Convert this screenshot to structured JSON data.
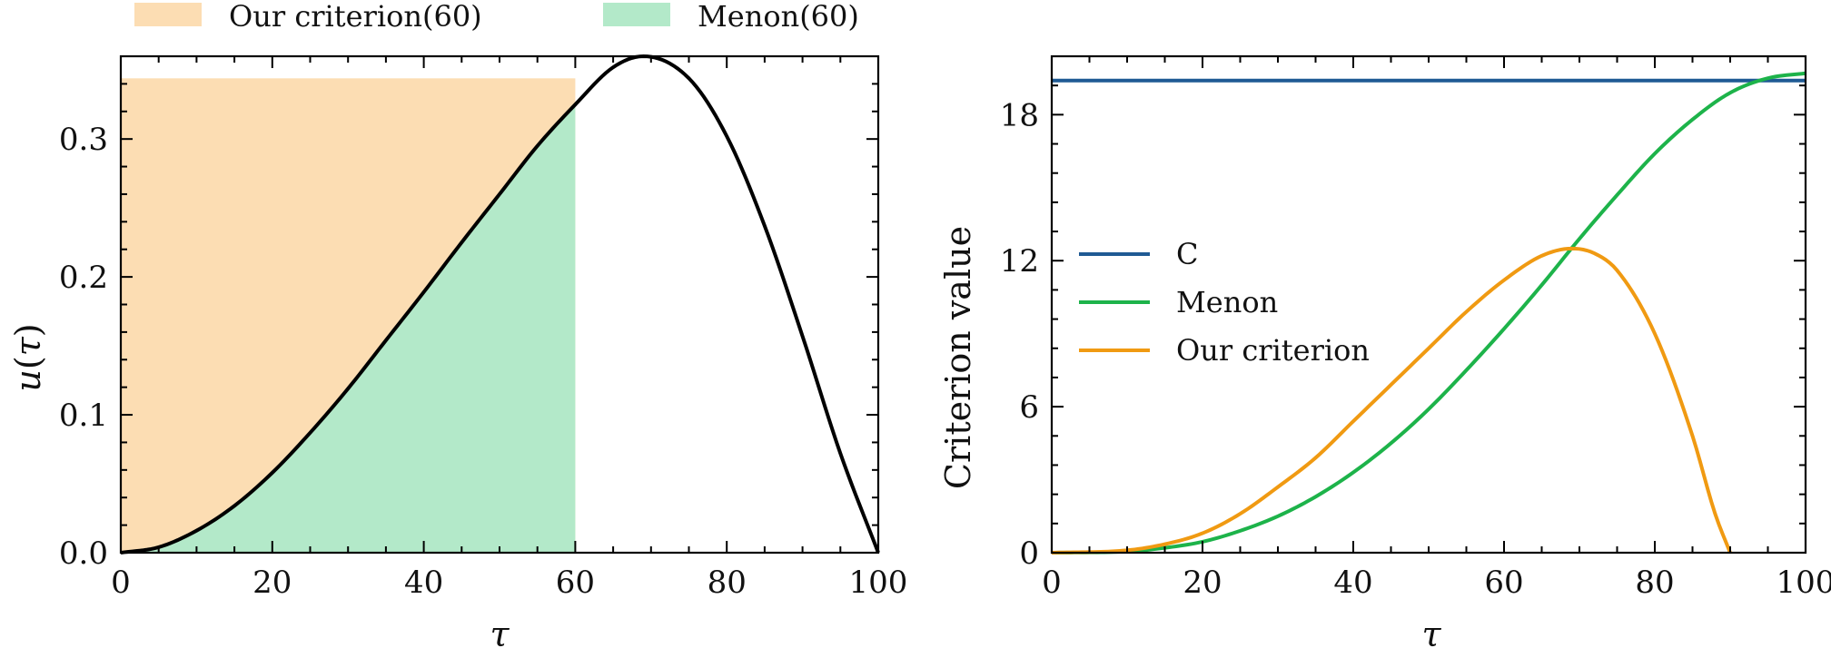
{
  "chart_data": [
    {
      "type": "area",
      "xlabel": "τ",
      "ylabel": "u(τ)",
      "xlim": [
        0,
        100
      ],
      "ylim": [
        0,
        0.36
      ],
      "xticks": [
        0,
        20,
        40,
        60,
        80,
        100
      ],
      "yticks": [
        0.0,
        0.1,
        0.2,
        0.3
      ],
      "xtick_labels": [
        "0",
        "20",
        "40",
        "60",
        "80",
        "100"
      ],
      "ytick_labels": [
        "0.0",
        "0.1",
        "0.2",
        "0.3"
      ],
      "legend": {
        "placement": "top, outside",
        "entries": [
          "Our criterion(60)",
          "Menon(60)"
        ]
      },
      "curve": {
        "x": [
          0,
          5,
          10,
          15,
          20,
          25,
          30,
          35,
          40,
          45,
          50,
          55,
          60,
          65,
          69,
          75,
          80,
          85,
          90,
          95,
          100
        ],
        "y": [
          0.0,
          0.004,
          0.016,
          0.034,
          0.058,
          0.087,
          0.119,
          0.154,
          0.189,
          0.225,
          0.26,
          0.295,
          0.325,
          0.352,
          0.36,
          0.344,
          0.302,
          0.237,
          0.157,
          0.072,
          0.0
        ]
      },
      "filled_regions": [
        {
          "name": "Our criterion(60)",
          "type": "rectangle",
          "x_range": [
            0,
            60
          ],
          "y_value": 0.344,
          "color": "#fcddb3"
        },
        {
          "name": "Menon(60)",
          "type": "under-curve",
          "x_range": [
            0,
            60
          ],
          "color": "#b3e9c9"
        }
      ],
      "curve_color": "#000000"
    },
    {
      "type": "line",
      "xlabel": "τ",
      "ylabel": "Criterion value",
      "xlim": [
        0,
        100
      ],
      "ylim": [
        0,
        20.4
      ],
      "xticks": [
        0,
        20,
        40,
        60,
        80,
        100
      ],
      "yticks": [
        0,
        6,
        12,
        18
      ],
      "xtick_labels": [
        "0",
        "20",
        "40",
        "60",
        "80",
        "100"
      ],
      "ytick_labels": [
        "0",
        "6",
        "12",
        "18"
      ],
      "legend": {
        "placement": "center-left"
      },
      "series": [
        {
          "name": "C",
          "color": "#1f5a94",
          "x": [
            0,
            100
          ],
          "values": [
            19.4,
            19.4
          ]
        },
        {
          "name": "Menon",
          "color": "#1db34a",
          "x": [
            0,
            10,
            15,
            20,
            25,
            30,
            35,
            40,
            45,
            50,
            55,
            60,
            65,
            70,
            75,
            80,
            85,
            90,
            95,
            100
          ],
          "values": [
            0,
            0.05,
            0.2,
            0.45,
            0.9,
            1.5,
            2.3,
            3.3,
            4.5,
            5.9,
            7.5,
            9.2,
            11.0,
            12.9,
            14.7,
            16.4,
            17.8,
            18.9,
            19.5,
            19.7
          ]
        },
        {
          "name": "Our criterion",
          "color": "#f09a12",
          "x": [
            0,
            10,
            15,
            20,
            25,
            30,
            35,
            40,
            45,
            50,
            55,
            60,
            65,
            69,
            72,
            75,
            80,
            85,
            88,
            90
          ],
          "values": [
            0,
            0.1,
            0.35,
            0.8,
            1.6,
            2.7,
            3.9,
            5.4,
            6.9,
            8.4,
            9.9,
            11.2,
            12.2,
            12.5,
            12.3,
            11.6,
            9.0,
            4.8,
            1.6,
            0
          ]
        }
      ]
    }
  ]
}
